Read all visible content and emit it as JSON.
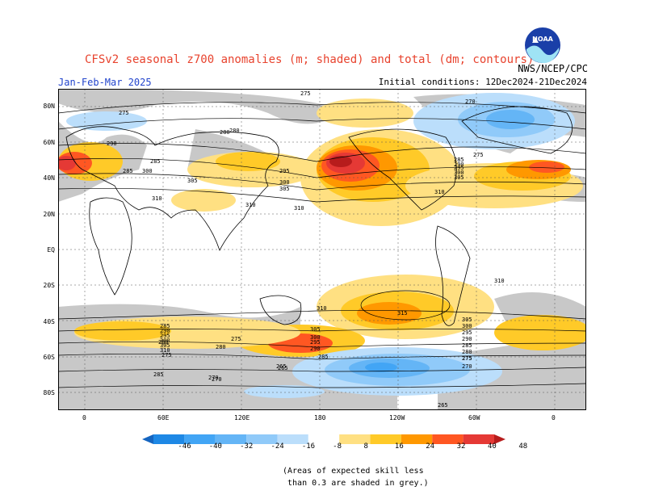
{
  "header": {
    "title": "CFSv2 seasonal z700 anomalies (m; shaded) and total (dm; contours)",
    "agency": "NWS/NCEP/CPC",
    "period": "Jan-Feb-Mar 2025",
    "initial_conditions": "Initial conditions: 12Dec2024-21Dec2024"
  },
  "map": {
    "lat_labels": [
      "80N",
      "60N",
      "40N",
      "20N",
      "EQ",
      "20S",
      "40S",
      "60S",
      "80S"
    ],
    "lon_labels": [
      "0",
      "60E",
      "120E",
      "180",
      "120W",
      "60W",
      "0"
    ],
    "contour_labels": [
      "275",
      "275",
      "280",
      "270",
      "275",
      "280",
      "285",
      "290",
      "285",
      "300",
      "305",
      "310",
      "295",
      "300",
      "305",
      "310",
      "285",
      "290",
      "295",
      "300",
      "305",
      "310",
      "310",
      "310",
      "305",
      "300",
      "295",
      "290",
      "285",
      "280",
      "275",
      "265",
      "270",
      "275",
      "285",
      "290",
      "295",
      "300",
      "305",
      "310",
      "315",
      "310",
      "305",
      "300",
      "295",
      "290",
      "285",
      "280",
      "275",
      "270",
      "265",
      "265",
      "270",
      "275",
      "285",
      "280"
    ]
  },
  "legend": {
    "labels": [
      "-46",
      "-40",
      "-32",
      "-24",
      "-16",
      "-8",
      "8",
      "16",
      "24",
      "32",
      "40",
      "48"
    ],
    "colors": [
      "#1565c0",
      "#1e88e5",
      "#42a5f5",
      "#64b5f6",
      "#90caf9",
      "#bbdefb",
      "#ffffff",
      "#ffe082",
      "#ffca28",
      "#ff9800",
      "#ff5722",
      "#e53935",
      "#b71c1c"
    ]
  },
  "note": {
    "text": "(Areas of expected skill less\n than 0.3 are shaded in grey.)"
  },
  "colors": {
    "title": "#e8432e",
    "period": "#2244cc",
    "skill_grey": "#c8c8c8"
  }
}
